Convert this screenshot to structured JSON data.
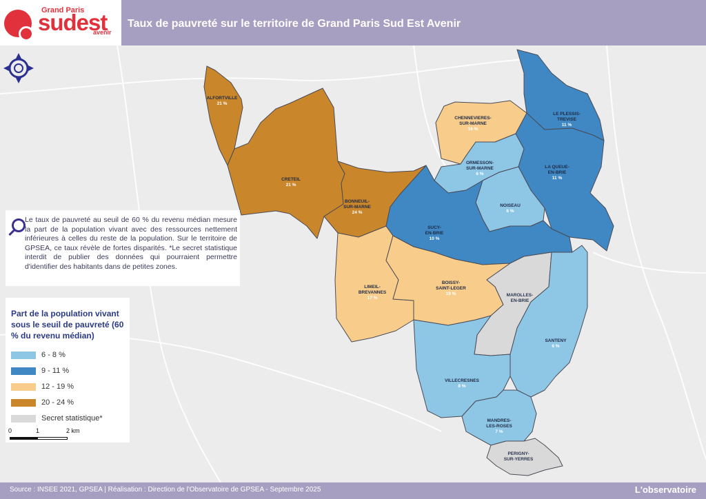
{
  "header": {
    "logo_top": "Grand Paris",
    "logo_main": "sudest",
    "logo_sub": "avenir",
    "title": "Taux de pauvreté sur le territoire de Grand Paris Sud Est Avenir"
  },
  "info": {
    "text": "Le taux de pauvreté au seuil de 60 % du revenu médian mesure la part de la population vivant avec des ressources nettement inférieures à celles du reste de la population. Sur le territoire de GPSEA, ce taux révèle de fortes disparités. *Le secret statistique interdit de publier des données qui pourraient permettre d'identifier des habitants dans de petites zones."
  },
  "legend": {
    "title": "Part de la population vivant sous le seuil de pauvreté (60 % du revenu médian)",
    "classes": [
      {
        "label": "6 - 8 %",
        "color": "#8ec6e6"
      },
      {
        "label": "9 - 11 %",
        "color": "#3f88c3"
      },
      {
        "label": "12 - 19 %",
        "color": "#f8cc8b"
      },
      {
        "label": "20 - 24 %",
        "color": "#c9862a"
      },
      {
        "label": "Secret statistique*",
        "color": "#d9d9d9"
      }
    ]
  },
  "scale": {
    "t0": "0",
    "t1": "1",
    "t2": "2 km"
  },
  "communes": [
    {
      "name": "ALFORTVILLE",
      "pct": "21 %"
    },
    {
      "name": "CRETEIL",
      "pct": "21 %"
    },
    {
      "name": "BONNEUIL-SUR-MARNE",
      "name1": "BONNEUIL-",
      "name2": "SUR-MARNE",
      "pct": "24 %"
    },
    {
      "name": "CHENNEVIERES-SUR-MARNE",
      "name1": "CHENNEVIERES-",
      "name2": "SUR-MARNE",
      "pct": "16 %"
    },
    {
      "name": "LE PLESSIS-TREVISE",
      "name1": "LE PLESSIS-",
      "name2": "TREVISE",
      "pct": "11 %"
    },
    {
      "name": "ORMESSON-SUR-MARNE",
      "name1": "ORMESSON-",
      "name2": "SUR-MARNE",
      "pct": "6 %"
    },
    {
      "name": "LA QUEUE-EN-BRIE",
      "name1": "LA QUEUE-",
      "name2": "EN-BRIE",
      "pct": "11 %"
    },
    {
      "name": "NOISEAU",
      "pct": "6 %"
    },
    {
      "name": "SUCY-EN-BRIE",
      "name1": "SUCY-",
      "name2": "EN-BRIE",
      "pct": "10 %"
    },
    {
      "name": "LIMEIL-BREVANNES",
      "name1": "LIMEIL-",
      "name2": "BREVANNES",
      "pct": "17 %"
    },
    {
      "name": "BOISSY-SAINT-LEGER",
      "name1": "BOISSY-",
      "name2": "SAINT-LEGER",
      "pct": "19 %"
    },
    {
      "name": "MAROLLES-EN-BRIE",
      "name1": "MAROLLES-",
      "name2": "EN-BRIE"
    },
    {
      "name": "SANTENY",
      "pct": "6 %"
    },
    {
      "name": "VILLECRESNES",
      "pct": "8 %"
    },
    {
      "name": "MANDRES-LES-ROSES",
      "name1": "MANDRES-",
      "name2": "LES-ROSES",
      "pct": "7 %"
    },
    {
      "name": "PERIGNY-SUR-YERRES",
      "name1": "PERIGNY-",
      "name2": "SUR-YERRES"
    }
  ],
  "footer": {
    "source": "Source : INSEE 2021, GPSEA | Réalisation : Direction de l'Observatoire de GPSEA - Septembre 2025",
    "brand": "L'observatoire"
  }
}
